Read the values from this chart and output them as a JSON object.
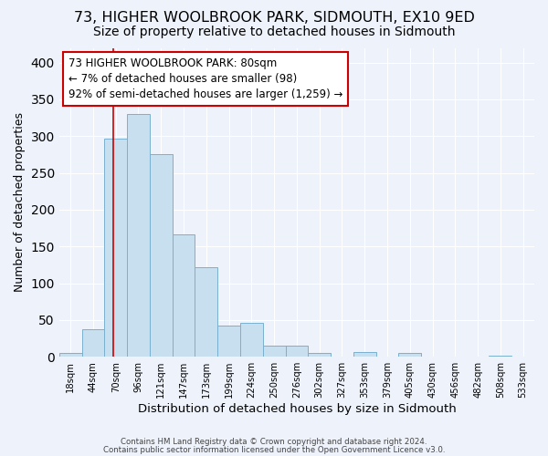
{
  "title": "73, HIGHER WOOLBROOK PARK, SIDMOUTH, EX10 9ED",
  "subtitle": "Size of property relative to detached houses in Sidmouth",
  "xlabel": "Distribution of detached houses by size in Sidmouth",
  "ylabel": "Number of detached properties",
  "bar_labels": [
    "18sqm",
    "44sqm",
    "70sqm",
    "96sqm",
    "121sqm",
    "147sqm",
    "173sqm",
    "199sqm",
    "224sqm",
    "250sqm",
    "276sqm",
    "302sqm",
    "327sqm",
    "353sqm",
    "379sqm",
    "405sqm",
    "430sqm",
    "456sqm",
    "482sqm",
    "508sqm",
    "533sqm"
  ],
  "bar_values": [
    5,
    37,
    296,
    330,
    275,
    167,
    122,
    43,
    46,
    15,
    15,
    5,
    0,
    6,
    0,
    5,
    0,
    0,
    0,
    2,
    0
  ],
  "bar_color": "#c8dff0",
  "bar_edge_color": "#7ab0ce",
  "vline_x_index": 2.38,
  "vline_color": "#cc0000",
  "annotation_text": "73 HIGHER WOOLBROOK PARK: 80sqm\n← 7% of detached houses are smaller (98)\n92% of semi-detached houses are larger (1,259) →",
  "annotation_box_edge_color": "#cc0000",
  "annotation_box_face_color": "#ffffff",
  "ylim": [
    0,
    420
  ],
  "yticks": [
    0,
    50,
    100,
    150,
    200,
    250,
    300,
    350,
    400
  ],
  "footnote1": "Contains HM Land Registry data © Crown copyright and database right 2024.",
  "footnote2": "Contains public sector information licensed under the Open Government Licence v3.0.",
  "background_color": "#eef2fb",
  "grid_color": "#ffffff",
  "title_fontsize": 11.5,
  "subtitle_fontsize": 10,
  "xlabel_fontsize": 9.5,
  "ylabel_fontsize": 9,
  "annotation_fontsize": 8.5
}
